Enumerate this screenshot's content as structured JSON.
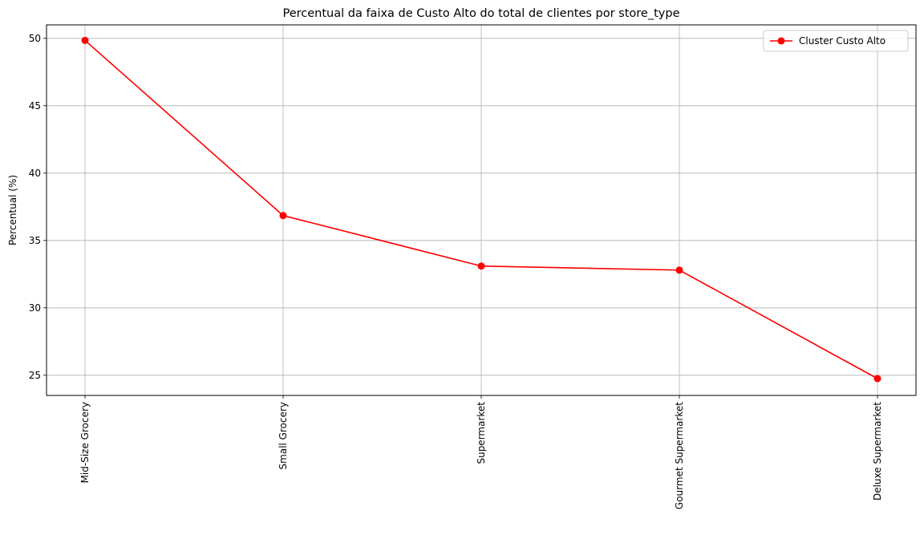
{
  "chart_data": {
    "type": "line",
    "title": "Percentual da faixa de Custo Alto do total de clientes por store_type",
    "xlabel": "",
    "ylabel": "Percentual (%)",
    "categories": [
      "Mid-Size Grocery",
      "Small Grocery",
      "Supermarket",
      "Gourmet Supermarket",
      "Deluxe Supermarket"
    ],
    "series": [
      {
        "name": "Cluster Custo Alto",
        "values": [
          49.85,
          36.85,
          33.1,
          32.8,
          24.75
        ],
        "color": "#ff0000"
      }
    ],
    "ylim": [
      23.5,
      51.0
    ],
    "yticks": [
      25,
      30,
      35,
      40,
      45,
      50
    ],
    "grid": true,
    "legend_position": "top-right"
  }
}
